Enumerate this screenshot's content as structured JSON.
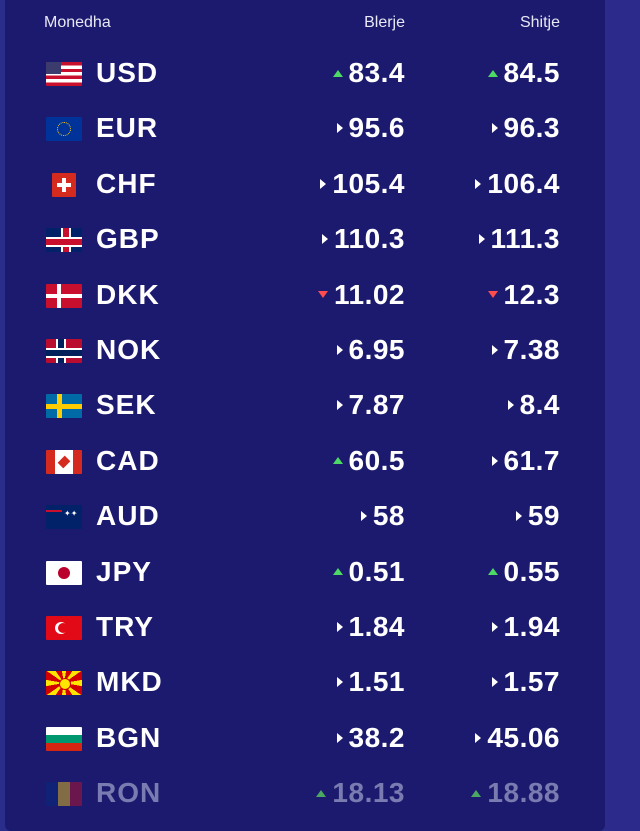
{
  "header": {
    "currency_label": "Monedha",
    "buy_label": "Blerje",
    "sell_label": "Shitje"
  },
  "colors": {
    "panel_bg": "#1c1a6e",
    "up": "#4cd964",
    "down": "#ff4d4d",
    "neutral": "#ffffff"
  },
  "rates": [
    {
      "code": "USD",
      "flag": "us-flag-icon",
      "buy": "83.4",
      "buy_trend": "up",
      "sell": "84.5",
      "sell_trend": "up"
    },
    {
      "code": "EUR",
      "flag": "eu-flag-icon",
      "buy": "95.6",
      "buy_trend": "neutral",
      "sell": "96.3",
      "sell_trend": "neutral"
    },
    {
      "code": "CHF",
      "flag": "ch-flag-icon",
      "buy": "105.4",
      "buy_trend": "neutral",
      "sell": "106.4",
      "sell_trend": "neutral"
    },
    {
      "code": "GBP",
      "flag": "gb-flag-icon",
      "buy": "110.3",
      "buy_trend": "neutral",
      "sell": "111.3",
      "sell_trend": "neutral"
    },
    {
      "code": "DKK",
      "flag": "dk-flag-icon",
      "buy": "11.02",
      "buy_trend": "down",
      "sell": "12.3",
      "sell_trend": "down"
    },
    {
      "code": "NOK",
      "flag": "no-flag-icon",
      "buy": "6.95",
      "buy_trend": "neutral",
      "sell": "7.38",
      "sell_trend": "neutral"
    },
    {
      "code": "SEK",
      "flag": "se-flag-icon",
      "buy": "7.87",
      "buy_trend": "neutral",
      "sell": "8.4",
      "sell_trend": "neutral"
    },
    {
      "code": "CAD",
      "flag": "ca-flag-icon",
      "buy": "60.5",
      "buy_trend": "up",
      "sell": "61.7",
      "sell_trend": "neutral"
    },
    {
      "code": "AUD",
      "flag": "au-flag-icon",
      "buy": "58",
      "buy_trend": "neutral",
      "sell": "59",
      "sell_trend": "neutral"
    },
    {
      "code": "JPY",
      "flag": "jp-flag-icon",
      "buy": "0.51",
      "buy_trend": "up",
      "sell": "0.55",
      "sell_trend": "up"
    },
    {
      "code": "TRY",
      "flag": "tr-flag-icon",
      "buy": "1.84",
      "buy_trend": "neutral",
      "sell": "1.94",
      "sell_trend": "neutral"
    },
    {
      "code": "MKD",
      "flag": "mk-flag-icon",
      "buy": "1.51",
      "buy_trend": "neutral",
      "sell": "1.57",
      "sell_trend": "neutral"
    },
    {
      "code": "BGN",
      "flag": "bg-flag-icon",
      "buy": "38.2",
      "buy_trend": "neutral",
      "sell": "45.06",
      "sell_trend": "neutral"
    },
    {
      "code": "RON",
      "flag": "ro-flag-icon",
      "buy": "18.13",
      "buy_trend": "up",
      "sell": "18.88",
      "sell_trend": "up"
    }
  ]
}
